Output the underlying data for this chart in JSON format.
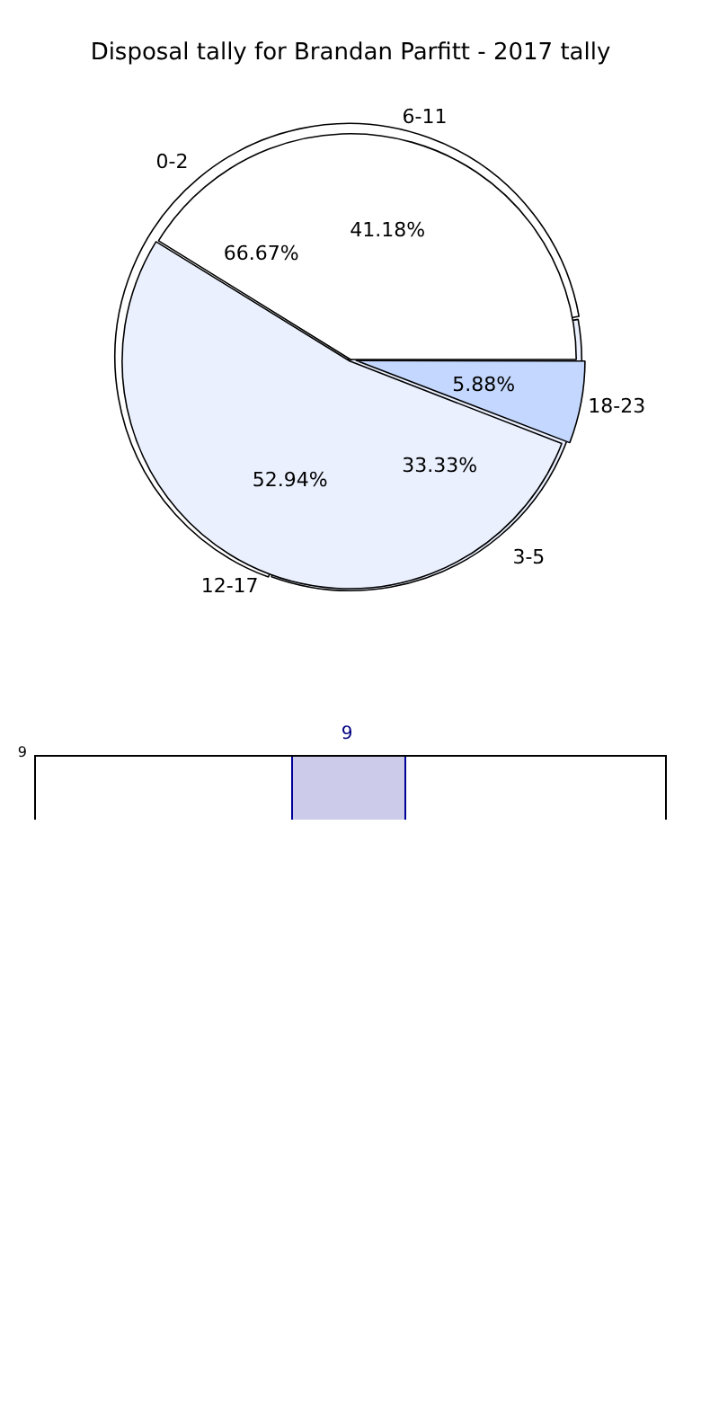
{
  "chart_data": [
    {
      "type": "pie",
      "title": "Disposal tally for Brandan Parfitt - 2017 tally",
      "categories": [
        "18-23",
        "12-17",
        "6-11"
      ],
      "values": [
        5.88,
        52.94,
        41.18
      ],
      "colors": [
        "#c4d7fe",
        "#eaf0fe",
        "#ffffff"
      ],
      "value_labels": [
        "5.88%",
        "52.94%",
        "41.18%"
      ]
    },
    {
      "type": "pie",
      "categories": [
        "3-5",
        "0-2"
      ],
      "values": [
        33.33,
        66.67
      ],
      "colors": [
        "#eaf0fe",
        "#ffffff"
      ],
      "value_labels": [
        "33.33%",
        "66.67%"
      ]
    },
    {
      "type": "other",
      "annotations": [
        "9",
        "9"
      ]
    }
  ]
}
